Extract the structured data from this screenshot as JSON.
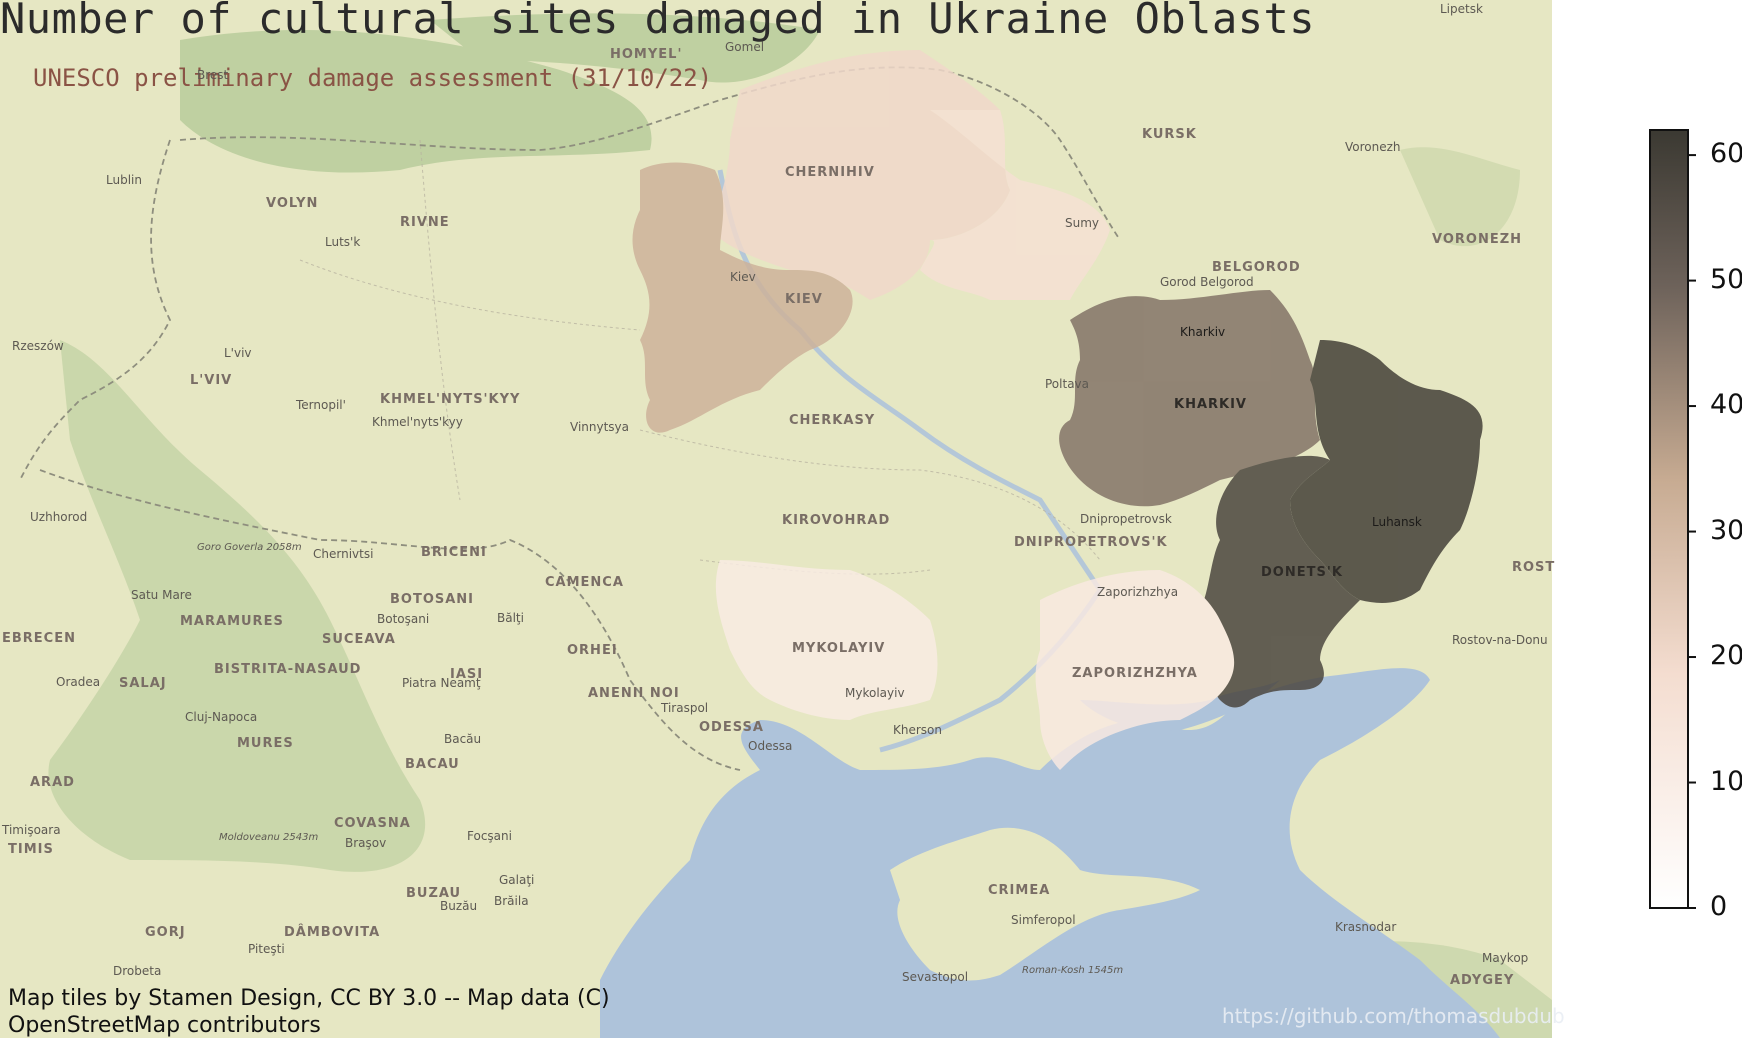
{
  "title": "Number of cultural sites damaged in Ukraine Oblasts",
  "subtitle": "UNESCO preliminary damage assessment (31/10/22)",
  "attribution": "Map tiles by Stamen Design, CC BY 3.0 -- Map data (C) OpenStreetMap contributors",
  "watermark": "https://github.com/thomasdubdub",
  "colors": {
    "sea": "#aec3da",
    "land": "#e8e8c2",
    "scale_low": "#ffffff",
    "scale_high": "#3b3932"
  },
  "chart_data": {
    "type": "choropleth",
    "colorbar": {
      "min": 0,
      "max": 62,
      "ticks": [
        "0",
        "10",
        "20",
        "30",
        "40",
        "50",
        "60"
      ]
    },
    "regions": [
      {
        "name": "CHERNIHIV",
        "value": 20
      },
      {
        "name": "KIEV",
        "value": 32
      },
      {
        "name": "SUMY",
        "value": 17
      },
      {
        "name": "KHARKIV",
        "value": 46
      },
      {
        "name": "LUHANSK",
        "value": 60
      },
      {
        "name": "DONETS'K",
        "value": 58
      },
      {
        "name": "ZAPORIZHZHYA",
        "value": 12
      },
      {
        "name": "MYKOLAYIV",
        "value": 11
      }
    ]
  },
  "labels": {
    "oblasts": [
      "CHERNIHIV",
      "KIEV",
      "KHARKIV",
      "DONETS'K",
      "CHERKASY",
      "KIROVOHRAD",
      "MYKOLAYIV",
      "ZAPORIZHZHYA",
      "DNIPROPETROVS'K",
      "CRIMEA",
      "ODESSA",
      "VOLYN",
      "RIVNE",
      "L'VIV",
      "KHMEL'NYTS'KYY",
      "KURSK",
      "BELGOROD",
      "VORONEZH",
      "ROST",
      "ADYGEY",
      "HOMYEL'",
      "BRICENI",
      "CAMENCA",
      "ORHEI",
      "ANENII NOI",
      "BOTOSANI",
      "SUCEAVA",
      "IASI",
      "MARAMURES",
      "BISTRITA-NASAUD",
      "MURES",
      "BACAU",
      "COVASNA",
      "BUZAU",
      "DÂMBOVITA",
      "GORJ",
      "ARAD",
      "TIMIS",
      "SALAJ",
      "EBRECEN"
    ],
    "cities": [
      "Kiev",
      "Kharkiv",
      "Luhansk",
      "Sumy",
      "Poltava",
      "Dnipropetrovsk",
      "Zaporizhzhya",
      "Mykolayiv",
      "Kherson",
      "Odessa",
      "Tiraspol",
      "Simferopol",
      "Sevastopol",
      "Rostov-na-Donu",
      "Krasnodar",
      "Maykop",
      "Voronezh",
      "Lipetsk",
      "Gorod Belgorod",
      "Vinnytsya",
      "Khmel'nyts'kyy",
      "Ternopil'",
      "L'viv",
      "Luts'k",
      "Lublin",
      "Rzeszów",
      "Uzhhorod",
      "Chernivtsi",
      "Bălţi",
      "Botoşani",
      "Piatra Neamţ",
      "Bacău",
      "Focşani",
      "Galaţi",
      "Brăila",
      "Buzău",
      "Braşov",
      "Piteşti",
      "Cluj-Napoca",
      "Oradea",
      "Satu Mare",
      "Timişoara",
      "Drobeta",
      "Gomel",
      "Brest",
      "Roman-Kosh 1545m",
      "Goro Goverla 2058m",
      "Moldoveanu 2543m"
    ]
  }
}
